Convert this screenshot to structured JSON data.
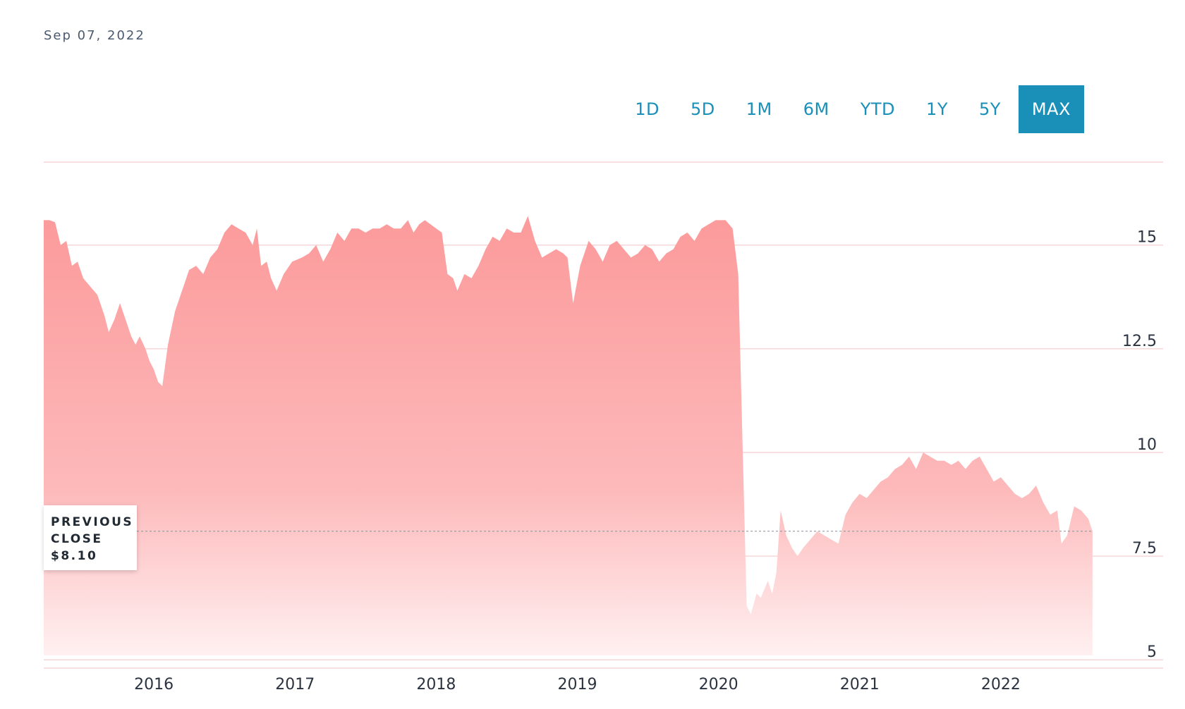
{
  "header": {
    "date": "Sep 07, 2022"
  },
  "range_tabs": [
    {
      "label": "1D",
      "active": false
    },
    {
      "label": "5D",
      "active": false
    },
    {
      "label": "1M",
      "active": false
    },
    {
      "label": "6M",
      "active": false
    },
    {
      "label": "YTD",
      "active": false
    },
    {
      "label": "1Y",
      "active": false
    },
    {
      "label": "5Y",
      "active": false
    },
    {
      "label": "MAX",
      "active": true
    }
  ],
  "previous_close": {
    "line1": "PREVIOUS",
    "line2": "CLOSE",
    "value_text": "$8.10",
    "value": 8.1
  },
  "colors": {
    "accent": "#1a8fb8",
    "area_top": "#fc9a9b",
    "area_bottom": "#fff0f1",
    "grid": "#f6d6d8"
  },
  "chart_data": {
    "type": "area",
    "title": "",
    "xlabel": "",
    "ylabel": "",
    "ylim": [
      4.8,
      17.0
    ],
    "xlim": [
      2015.22,
      2023.15
    ],
    "grid": true,
    "y_ticks": [
      {
        "value": 15,
        "label": "15"
      },
      {
        "value": 12.5,
        "label": "12.5"
      },
      {
        "value": 10,
        "label": "10"
      },
      {
        "value": 7.5,
        "label": "7.5"
      },
      {
        "value": 5,
        "label": "5"
      }
    ],
    "x_ticks": [
      {
        "value": 2016,
        "label": "2016"
      },
      {
        "value": 2017,
        "label": "2017"
      },
      {
        "value": 2018,
        "label": "2018"
      },
      {
        "value": 2019,
        "label": "2019"
      },
      {
        "value": 2020,
        "label": "2020"
      },
      {
        "value": 2021,
        "label": "2021"
      },
      {
        "value": 2022,
        "label": "2022"
      }
    ],
    "series": [
      {
        "points": [
          [
            2015.22,
            15.6
          ],
          [
            2015.26,
            15.6
          ],
          [
            2015.3,
            15.55
          ],
          [
            2015.34,
            15.0
          ],
          [
            2015.38,
            15.1
          ],
          [
            2015.42,
            14.5
          ],
          [
            2015.46,
            14.6
          ],
          [
            2015.5,
            14.2
          ],
          [
            2015.55,
            14.0
          ],
          [
            2015.6,
            13.8
          ],
          [
            2015.65,
            13.3
          ],
          [
            2015.68,
            12.9
          ],
          [
            2015.72,
            13.2
          ],
          [
            2015.76,
            13.6
          ],
          [
            2015.8,
            13.2
          ],
          [
            2015.84,
            12.8
          ],
          [
            2015.87,
            12.6
          ],
          [
            2015.9,
            12.8
          ],
          [
            2015.94,
            12.5
          ],
          [
            2015.97,
            12.2
          ],
          [
            2016.0,
            12.0
          ],
          [
            2016.03,
            11.7
          ],
          [
            2016.06,
            11.6
          ],
          [
            2016.1,
            12.6
          ],
          [
            2016.15,
            13.4
          ],
          [
            2016.2,
            13.9
          ],
          [
            2016.25,
            14.4
          ],
          [
            2016.3,
            14.5
          ],
          [
            2016.35,
            14.3
          ],
          [
            2016.4,
            14.7
          ],
          [
            2016.45,
            14.9
          ],
          [
            2016.5,
            15.3
          ],
          [
            2016.55,
            15.5
          ],
          [
            2016.6,
            15.4
          ],
          [
            2016.65,
            15.3
          ],
          [
            2016.7,
            15.0
          ],
          [
            2016.73,
            15.4
          ],
          [
            2016.76,
            14.5
          ],
          [
            2016.8,
            14.6
          ],
          [
            2016.83,
            14.2
          ],
          [
            2016.87,
            13.9
          ],
          [
            2016.92,
            14.3
          ],
          [
            2016.98,
            14.6
          ],
          [
            2017.05,
            14.7
          ],
          [
            2017.1,
            14.8
          ],
          [
            2017.15,
            15.0
          ],
          [
            2017.2,
            14.6
          ],
          [
            2017.25,
            14.9
          ],
          [
            2017.3,
            15.3
          ],
          [
            2017.35,
            15.1
          ],
          [
            2017.4,
            15.4
          ],
          [
            2017.45,
            15.4
          ],
          [
            2017.5,
            15.3
          ],
          [
            2017.55,
            15.4
          ],
          [
            2017.6,
            15.4
          ],
          [
            2017.65,
            15.5
          ],
          [
            2017.7,
            15.4
          ],
          [
            2017.75,
            15.4
          ],
          [
            2017.8,
            15.6
          ],
          [
            2017.84,
            15.3
          ],
          [
            2017.88,
            15.5
          ],
          [
            2017.92,
            15.6
          ],
          [
            2017.96,
            15.5
          ],
          [
            2018.0,
            15.4
          ],
          [
            2018.04,
            15.3
          ],
          [
            2018.08,
            14.3
          ],
          [
            2018.12,
            14.2
          ],
          [
            2018.15,
            13.9
          ],
          [
            2018.2,
            14.3
          ],
          [
            2018.25,
            14.2
          ],
          [
            2018.3,
            14.5
          ],
          [
            2018.35,
            14.9
          ],
          [
            2018.4,
            15.2
          ],
          [
            2018.45,
            15.1
          ],
          [
            2018.5,
            15.4
          ],
          [
            2018.55,
            15.3
          ],
          [
            2018.6,
            15.3
          ],
          [
            2018.65,
            15.7
          ],
          [
            2018.7,
            15.1
          ],
          [
            2018.75,
            14.7
          ],
          [
            2018.8,
            14.8
          ],
          [
            2018.85,
            14.9
          ],
          [
            2018.9,
            14.8
          ],
          [
            2018.93,
            14.7
          ],
          [
            2018.97,
            13.6
          ],
          [
            2019.02,
            14.5
          ],
          [
            2019.08,
            15.1
          ],
          [
            2019.13,
            14.9
          ],
          [
            2019.18,
            14.6
          ],
          [
            2019.23,
            15.0
          ],
          [
            2019.28,
            15.1
          ],
          [
            2019.33,
            14.9
          ],
          [
            2019.38,
            14.7
          ],
          [
            2019.43,
            14.8
          ],
          [
            2019.48,
            15.0
          ],
          [
            2019.53,
            14.9
          ],
          [
            2019.58,
            14.6
          ],
          [
            2019.63,
            14.8
          ],
          [
            2019.68,
            14.9
          ],
          [
            2019.73,
            15.2
          ],
          [
            2019.78,
            15.3
          ],
          [
            2019.83,
            15.1
          ],
          [
            2019.88,
            15.4
          ],
          [
            2019.93,
            15.5
          ],
          [
            2019.98,
            15.6
          ],
          [
            2020.05,
            15.6
          ],
          [
            2020.1,
            15.4
          ],
          [
            2020.14,
            14.3
          ],
          [
            2020.2,
            6.3
          ],
          [
            2020.23,
            6.1
          ],
          [
            2020.27,
            6.6
          ],
          [
            2020.3,
            6.5
          ],
          [
            2020.35,
            6.9
          ],
          [
            2020.38,
            6.6
          ],
          [
            2020.41,
            7.1
          ],
          [
            2020.44,
            8.6
          ],
          [
            2020.48,
            8.0
          ],
          [
            2020.52,
            7.7
          ],
          [
            2020.56,
            7.5
          ],
          [
            2020.6,
            7.7
          ],
          [
            2020.65,
            7.9
          ],
          [
            2020.7,
            8.1
          ],
          [
            2020.75,
            8.0
          ],
          [
            2020.8,
            7.9
          ],
          [
            2020.85,
            7.8
          ],
          [
            2020.9,
            8.5
          ],
          [
            2020.95,
            8.8
          ],
          [
            2021.0,
            9.0
          ],
          [
            2021.05,
            8.9
          ],
          [
            2021.1,
            9.1
          ],
          [
            2021.15,
            9.3
          ],
          [
            2021.2,
            9.4
          ],
          [
            2021.25,
            9.6
          ],
          [
            2021.3,
            9.7
          ],
          [
            2021.35,
            9.9
          ],
          [
            2021.4,
            9.6
          ],
          [
            2021.45,
            10.0
          ],
          [
            2021.5,
            9.9
          ],
          [
            2021.55,
            9.8
          ],
          [
            2021.6,
            9.8
          ],
          [
            2021.65,
            9.7
          ],
          [
            2021.7,
            9.8
          ],
          [
            2021.75,
            9.6
          ],
          [
            2021.8,
            9.8
          ],
          [
            2021.85,
            9.9
          ],
          [
            2021.9,
            9.6
          ],
          [
            2021.95,
            9.3
          ],
          [
            2022.0,
            9.4
          ],
          [
            2022.05,
            9.2
          ],
          [
            2022.1,
            9.0
          ],
          [
            2022.15,
            8.9
          ],
          [
            2022.2,
            9.0
          ],
          [
            2022.25,
            9.2
          ],
          [
            2022.3,
            8.8
          ],
          [
            2022.35,
            8.5
          ],
          [
            2022.4,
            8.6
          ],
          [
            2022.43,
            7.8
          ],
          [
            2022.47,
            8.0
          ],
          [
            2022.52,
            8.7
          ],
          [
            2022.57,
            8.6
          ],
          [
            2022.62,
            8.4
          ],
          [
            2022.65,
            8.1
          ]
        ]
      }
    ]
  }
}
